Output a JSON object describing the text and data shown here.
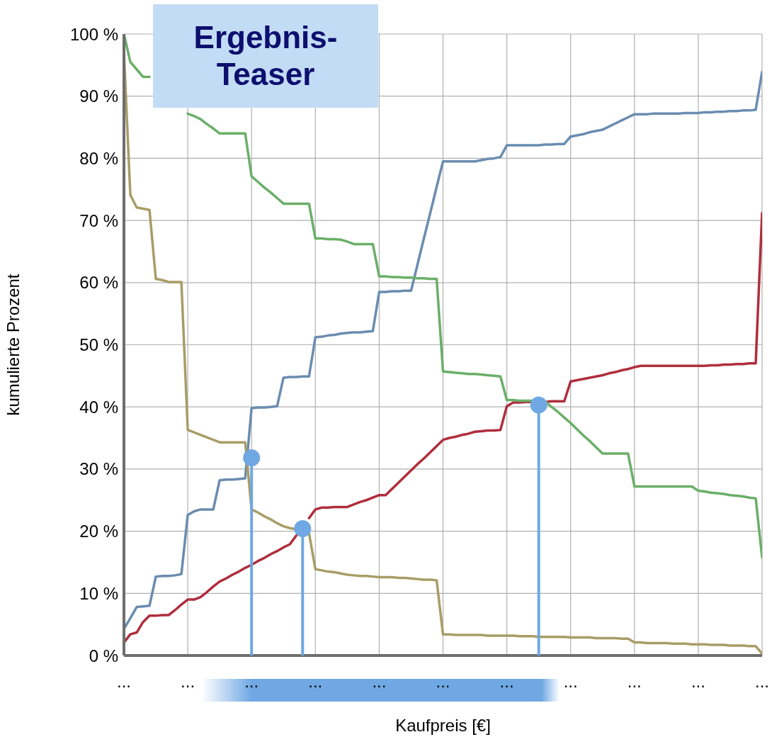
{
  "chart_data": {
    "type": "line",
    "xlabel": "Kaufpreis [€]",
    "ylabel": "kumulierte Prozent",
    "annotations": [
      "Ergebnis-Teaser"
    ],
    "categories": [
      "...",
      null,
      null,
      null,
      null,
      null,
      null,
      null,
      null,
      null,
      "...",
      null,
      null,
      null,
      null,
      null,
      null,
      null,
      null,
      null,
      "...",
      null,
      null,
      null,
      null,
      null,
      null,
      null,
      null,
      null,
      "...",
      null,
      null,
      null,
      null,
      null,
      null,
      null,
      null,
      null,
      "...",
      null,
      null,
      null,
      null,
      null,
      null,
      null,
      null,
      null,
      "...",
      null,
      null,
      null,
      null,
      null,
      null,
      null,
      null,
      null,
      "...",
      null,
      null,
      null,
      null,
      null,
      null,
      null,
      null,
      null,
      "...",
      null,
      null,
      null,
      null,
      null,
      null,
      null,
      null,
      null,
      "...",
      null,
      null,
      null,
      null,
      null,
      null,
      null,
      null,
      null,
      "...",
      null,
      null,
      null,
      null,
      null,
      null,
      null,
      null,
      null,
      "..."
    ],
    "ylim": [
      0,
      100
    ],
    "yticks": [
      {
        "value": 0,
        "label": "0 %"
      },
      {
        "value": 10,
        "label": "10 %"
      },
      {
        "value": 20,
        "label": "20 %"
      },
      {
        "value": 30,
        "label": "30 %"
      },
      {
        "value": 40,
        "label": "40 %"
      },
      {
        "value": 50,
        "label": "50 %"
      },
      {
        "value": 60,
        "label": "60 %"
      },
      {
        "value": 70,
        "label": "70 %"
      },
      {
        "value": 80,
        "label": "80 %"
      },
      {
        "value": 90,
        "label": "90 %"
      },
      {
        "value": 100,
        "label": "100 %"
      }
    ],
    "grid": true,
    "marker": "none",
    "line_style": "solid",
    "series": [
      {
        "color": "#6a8cb0",
        "values": [
          4.3,
          6.0,
          7.8,
          7.9,
          8.0,
          12.7,
          12.8,
          12.8,
          12.9,
          13.1,
          22.6,
          23.2,
          23.5,
          23.5,
          23.5,
          28.2,
          28.3,
          28.3,
          28.4,
          28.5,
          39.8,
          39.9,
          39.9,
          40.0,
          40.1,
          44.7,
          44.8,
          44.8,
          44.9,
          44.9,
          51.2,
          51.3,
          51.5,
          51.6,
          51.8,
          51.9,
          52.0,
          52.0,
          52.1,
          52.2,
          58.5,
          58.5,
          58.6,
          58.6,
          58.7,
          58.7,
          62.9,
          67.1,
          71.2,
          75.4,
          79.5,
          79.5,
          79.5,
          79.5,
          79.5,
          79.5,
          79.7,
          79.9,
          80.0,
          80.2,
          82.1,
          82.1,
          82.1,
          82.1,
          82.1,
          82.1,
          82.2,
          82.2,
          82.3,
          82.3,
          83.5,
          83.7,
          83.9,
          84.2,
          84.4,
          84.6,
          85.1,
          85.6,
          86.1,
          86.6,
          87.1,
          87.1,
          87.1,
          87.2,
          87.2,
          87.2,
          87.2,
          87.2,
          87.3,
          87.3,
          87.3,
          87.4,
          87.4,
          87.5,
          87.5,
          87.6,
          87.6,
          87.7,
          87.7,
          87.8,
          93.9
        ]
      },
      {
        "color": "#b02e3c",
        "values": [
          2.1,
          3.4,
          3.7,
          5.4,
          6.4,
          6.4,
          6.5,
          6.5,
          7.3,
          8.2,
          9.0,
          9.0,
          9.4,
          10.2,
          11.1,
          11.9,
          12.4,
          13.0,
          13.5,
          14.1,
          14.6,
          15.2,
          15.7,
          16.3,
          16.8,
          17.4,
          17.9,
          19.3,
          null,
          22.1,
          23.5,
          23.8,
          23.8,
          23.9,
          23.9,
          23.9,
          24.3,
          24.7,
          25.0,
          25.4,
          25.8,
          25.8,
          26.8,
          27.8,
          28.8,
          29.8,
          30.8,
          31.7,
          32.7,
          33.7,
          34.7,
          35.0,
          35.2,
          35.5,
          35.7,
          36.0,
          36.1,
          36.2,
          36.2,
          36.3,
          40.1,
          40.7,
          40.7,
          40.8,
          40.8,
          null,
          40.8,
          40.9,
          40.9,
          40.9,
          44.1,
          44.3,
          44.5,
          44.7,
          44.9,
          45.1,
          45.4,
          45.6,
          45.9,
          46.1,
          46.4,
          46.6,
          46.6,
          46.6,
          46.6,
          46.6,
          46.6,
          46.6,
          46.6,
          46.6,
          46.6,
          46.6,
          46.7,
          46.7,
          46.8,
          46.8,
          46.9,
          46.9,
          47.0,
          47.0,
          71.2
        ]
      },
      {
        "color": "#a89d66",
        "values": [
          97,
          74.1,
          72.1,
          71.9,
          71.7,
          60.6,
          60.4,
          60.1,
          60.1,
          60.1,
          36.3,
          35.9,
          35.5,
          35.1,
          34.7,
          34.3,
          34.3,
          34.3,
          34.3,
          34.3,
          23.5,
          23.0,
          22.4,
          21.9,
          21.3,
          20.8,
          20.5,
          20.3,
          null,
          19.7,
          13.9,
          13.7,
          13.5,
          13.4,
          13.2,
          13.0,
          12.9,
          12.8,
          12.8,
          12.7,
          12.6,
          12.6,
          12.6,
          12.5,
          12.5,
          12.4,
          12.3,
          12.2,
          12.2,
          12.1,
          3.4,
          3.4,
          3.3,
          3.3,
          3.3,
          3.3,
          3.3,
          3.2,
          3.2,
          3.2,
          3.2,
          3.2,
          3.1,
          3.1,
          3.1,
          3.0,
          3.0,
          3.0,
          3.0,
          3.0,
          2.9,
          2.9,
          2.9,
          2.9,
          2.8,
          2.8,
          2.8,
          2.8,
          2.7,
          2.7,
          2.1,
          2.1,
          2.0,
          2.0,
          2.0,
          2.0,
          1.9,
          1.9,
          1.9,
          1.8,
          1.8,
          1.8,
          1.7,
          1.7,
          1.7,
          1.6,
          1.6,
          1.6,
          1.5,
          1.5,
          0.3
        ]
      },
      {
        "color": "#6aaf68",
        "values": [
          100,
          95.5,
          94.3,
          93.1,
          93.1,
          null,
          null,
          null,
          null,
          null,
          87.2,
          86.8,
          86.3,
          85.5,
          84.8,
          84.0,
          84.0,
          84.0,
          84.0,
          84.0,
          77.1,
          76.2,
          75.3,
          74.5,
          73.6,
          72.7,
          72.7,
          72.7,
          72.7,
          72.7,
          67.1,
          67.1,
          67.0,
          67.0,
          66.9,
          66.6,
          66.2,
          66.2,
          66.2,
          66.2,
          61.0,
          61.0,
          60.9,
          60.9,
          60.8,
          60.8,
          60.7,
          60.7,
          60.6,
          60.6,
          45.7,
          45.6,
          45.5,
          45.4,
          45.3,
          45.3,
          45.2,
          45.1,
          45.0,
          44.9,
          41.1,
          41.1,
          41.0,
          41.0,
          41.0,
          null,
          40.9,
          40.0,
          39.2,
          38.3,
          37.4,
          36.4,
          35.4,
          34.5,
          33.5,
          32.5,
          32.5,
          32.5,
          32.5,
          32.5,
          27.2,
          27.2,
          27.2,
          27.2,
          27.2,
          27.2,
          27.2,
          27.2,
          27.2,
          27.2,
          26.5,
          26.4,
          26.2,
          26.1,
          26.0,
          25.8,
          25.7,
          25.6,
          25.4,
          25.3,
          15.8
        ]
      },
      {
        "type": "lollipop",
        "marker": "circle",
        "color": "#6fa8e3",
        "values": [
          null,
          null,
          null,
          null,
          null,
          null,
          null,
          null,
          null,
          null,
          null,
          null,
          null,
          null,
          null,
          null,
          null,
          null,
          null,
          null,
          31.8,
          null,
          null,
          null,
          null,
          null,
          null,
          null,
          20.4,
          null,
          null,
          null,
          null,
          null,
          null,
          null,
          null,
          null,
          null,
          null,
          null,
          null,
          null,
          null,
          null,
          null,
          null,
          null,
          null,
          null,
          null,
          null,
          null,
          null,
          null,
          null,
          null,
          null,
          null,
          null,
          null,
          null,
          null,
          null,
          null,
          40.3,
          null,
          null,
          null,
          null,
          null,
          null,
          null,
          null,
          null,
          null,
          null,
          null,
          null,
          null,
          null,
          null,
          null,
          null,
          null,
          null,
          null,
          null,
          null,
          null,
          null,
          null,
          null,
          null,
          null,
          null,
          null,
          null,
          null,
          null,
          null
        ]
      }
    ]
  }
}
